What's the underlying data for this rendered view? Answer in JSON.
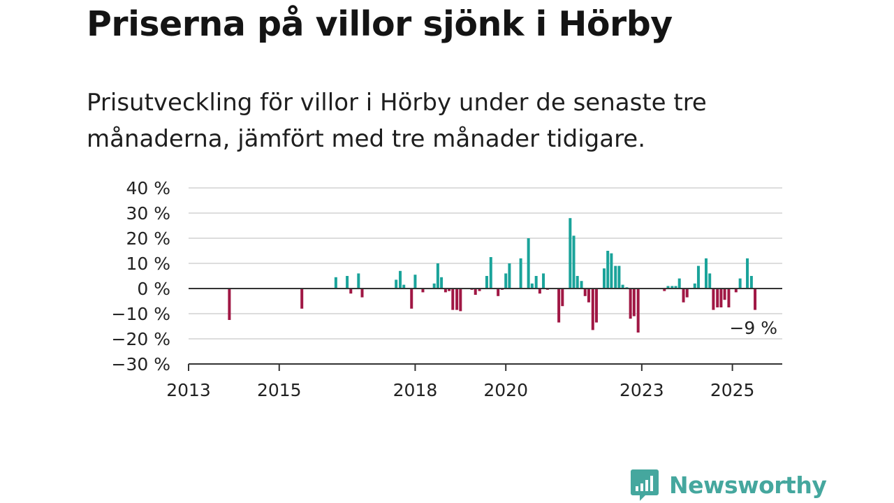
{
  "title": "Priserna på villor sjönk i Hörby",
  "subtitle": "Prisutveckling för villor i Hörby under de senaste tre månaderna, jämfört med tre månader tidigare.",
  "brand": {
    "name": "Newsworthy",
    "icon": "newsworthy-logo-icon",
    "color": "#45a79e"
  },
  "chart_data": {
    "type": "bar",
    "unit": "%",
    "x_unit": "year (decimal)",
    "ylim": [
      -30,
      40
    ],
    "xlim": [
      2013,
      2026.1
    ],
    "y_ticks": [
      {
        "value": 40,
        "label": "40 %"
      },
      {
        "value": 30,
        "label": "30 %"
      },
      {
        "value": 20,
        "label": "20 %"
      },
      {
        "value": 10,
        "label": "10 %"
      },
      {
        "value": 0,
        "label": "0 %"
      },
      {
        "value": -10,
        "label": "−10 %"
      },
      {
        "value": -20,
        "label": "−20 %"
      },
      {
        "value": -30,
        "label": "−30 %"
      }
    ],
    "x_ticks": [
      {
        "value": 2013,
        "label": "2013"
      },
      {
        "value": 2015,
        "label": "2015"
      },
      {
        "value": 2018,
        "label": "2018"
      },
      {
        "value": 2020,
        "label": "2020"
      },
      {
        "value": 2023,
        "label": "2023"
      },
      {
        "value": 2025,
        "label": "2025"
      }
    ],
    "grid": true,
    "colors": {
      "positive": "#1aa39a",
      "negative": "#a01744",
      "axis": "#333333",
      "grid": "#dddddd"
    },
    "series": [
      {
        "x": 2013.9,
        "value": -12.5
      },
      {
        "x": 2015.5,
        "value": -8
      },
      {
        "x": 2016.25,
        "value": 4.5
      },
      {
        "x": 2016.5,
        "value": 5
      },
      {
        "x": 2016.58,
        "value": -2
      },
      {
        "x": 2016.75,
        "value": 6
      },
      {
        "x": 2016.83,
        "value": -3.5
      },
      {
        "x": 2017.58,
        "value": 3.5
      },
      {
        "x": 2017.67,
        "value": 7
      },
      {
        "x": 2017.75,
        "value": 1.5
      },
      {
        "x": 2017.92,
        "value": -8
      },
      {
        "x": 2018.0,
        "value": 5.5
      },
      {
        "x": 2018.17,
        "value": -1.5
      },
      {
        "x": 2018.42,
        "value": 2
      },
      {
        "x": 2018.5,
        "value": 10
      },
      {
        "x": 2018.58,
        "value": 4.5
      },
      {
        "x": 2018.67,
        "value": -1.5
      },
      {
        "x": 2018.75,
        "value": -1
      },
      {
        "x": 2018.83,
        "value": -8.5
      },
      {
        "x": 2018.92,
        "value": -8.5
      },
      {
        "x": 2019.0,
        "value": -9
      },
      {
        "x": 2019.25,
        "value": -0.5
      },
      {
        "x": 2019.33,
        "value": -2.5
      },
      {
        "x": 2019.42,
        "value": -1
      },
      {
        "x": 2019.58,
        "value": 5
      },
      {
        "x": 2019.67,
        "value": 12.5
      },
      {
        "x": 2019.83,
        "value": -3
      },
      {
        "x": 2019.92,
        "value": -0.5
      },
      {
        "x": 2020.0,
        "value": 6
      },
      {
        "x": 2020.08,
        "value": 10
      },
      {
        "x": 2020.33,
        "value": 12
      },
      {
        "x": 2020.5,
        "value": 20
      },
      {
        "x": 2020.58,
        "value": 2
      },
      {
        "x": 2020.67,
        "value": 5
      },
      {
        "x": 2020.75,
        "value": -2
      },
      {
        "x": 2020.83,
        "value": 6
      },
      {
        "x": 2020.92,
        "value": -0.5
      },
      {
        "x": 2021.17,
        "value": -13.5
      },
      {
        "x": 2021.25,
        "value": -7
      },
      {
        "x": 2021.42,
        "value": 28
      },
      {
        "x": 2021.5,
        "value": 21
      },
      {
        "x": 2021.58,
        "value": 5
      },
      {
        "x": 2021.67,
        "value": 3
      },
      {
        "x": 2021.75,
        "value": -3
      },
      {
        "x": 2021.83,
        "value": -5.5
      },
      {
        "x": 2021.92,
        "value": -16.5
      },
      {
        "x": 2022.0,
        "value": -13.5
      },
      {
        "x": 2022.17,
        "value": 8
      },
      {
        "x": 2022.25,
        "value": 15
      },
      {
        "x": 2022.33,
        "value": 14
      },
      {
        "x": 2022.42,
        "value": 9
      },
      {
        "x": 2022.5,
        "value": 9
      },
      {
        "x": 2022.58,
        "value": 1.5
      },
      {
        "x": 2022.67,
        "value": 0.5
      },
      {
        "x": 2022.75,
        "value": -12
      },
      {
        "x": 2022.83,
        "value": -11
      },
      {
        "x": 2022.92,
        "value": -17.5
      },
      {
        "x": 2023.5,
        "value": -1
      },
      {
        "x": 2023.58,
        "value": 1
      },
      {
        "x": 2023.67,
        "value": 1
      },
      {
        "x": 2023.75,
        "value": 1
      },
      {
        "x": 2023.83,
        "value": 4
      },
      {
        "x": 2023.92,
        "value": -5.5
      },
      {
        "x": 2024.0,
        "value": -3.5
      },
      {
        "x": 2024.17,
        "value": 2
      },
      {
        "x": 2024.25,
        "value": 9
      },
      {
        "x": 2024.42,
        "value": 12
      },
      {
        "x": 2024.5,
        "value": 6
      },
      {
        "x": 2024.58,
        "value": -8.5
      },
      {
        "x": 2024.67,
        "value": -7.5
      },
      {
        "x": 2024.75,
        "value": -7.5
      },
      {
        "x": 2024.83,
        "value": -4.5
      },
      {
        "x": 2024.92,
        "value": -7.5
      },
      {
        "x": 2025.08,
        "value": -1.5
      },
      {
        "x": 2025.17,
        "value": 4
      },
      {
        "x": 2025.33,
        "value": 12
      },
      {
        "x": 2025.42,
        "value": 5
      },
      {
        "x": 2025.5,
        "value": -8.5
      }
    ],
    "annotation": {
      "text": "−9 %"
    }
  }
}
